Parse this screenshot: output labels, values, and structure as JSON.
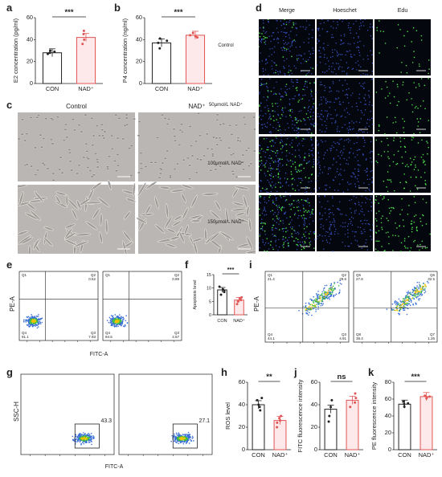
{
  "panel_letters": {
    "a": "a",
    "b": "b",
    "c": "c",
    "d": "d",
    "e": "e",
    "f": "f",
    "g": "g",
    "h": "h",
    "i": "i",
    "j": "j",
    "k": "k"
  },
  "chart_data": [
    {
      "id": "a",
      "type": "bar",
      "categories": [
        "CON",
        "NAD⁺"
      ],
      "values": [
        28,
        42
      ],
      "ylabel": "E2 concentration (pg/ml)",
      "ylim": [
        0,
        60
      ],
      "yticks": [
        0,
        20,
        40,
        60
      ],
      "significance": "***",
      "colors": [
        "#222222",
        "#e05555"
      ],
      "points": [
        [
          27,
          28,
          29,
          30
        ],
        [
          36,
          40,
          45,
          48
        ]
      ]
    },
    {
      "id": "b",
      "type": "bar",
      "categories": [
        "CON",
        "NAD⁺"
      ],
      "values": [
        37,
        44
      ],
      "ylabel": "P4 concentration (ng/ml)",
      "ylim": [
        0,
        60
      ],
      "yticks": [
        0,
        20,
        40,
        60
      ],
      "significance": "***",
      "colors": [
        "#222222",
        "#e05555"
      ],
      "points": [
        [
          32,
          37,
          41,
          39
        ],
        [
          43,
          46,
          42,
          44
        ]
      ]
    },
    {
      "id": "f",
      "type": "bar",
      "categories": [
        "CON",
        "NAD⁺"
      ],
      "values": [
        9.3,
        5.5
      ],
      "ylabel": "Apoptosis level",
      "ylim": [
        0,
        15
      ],
      "yticks": [
        0,
        5,
        10,
        15
      ],
      "significance": "***",
      "colors": [
        "#222222",
        "#e05555"
      ],
      "points": [
        [
          7.5,
          9,
          10.5,
          9.5,
          8.5
        ],
        [
          4,
          5,
          6.5,
          5.5,
          6.2
        ]
      ]
    },
    {
      "id": "h",
      "type": "bar",
      "categories": [
        "CON",
        "NAD⁺"
      ],
      "values": [
        40,
        26
      ],
      "ylabel": "ROS level",
      "ylim": [
        0,
        60
      ],
      "yticks": [
        0,
        20,
        40,
        60
      ],
      "significance": "**",
      "colors": [
        "#222222",
        "#e05555"
      ],
      "points": [
        [
          35,
          38,
          44,
          46,
          40
        ],
        [
          20,
          24,
          28,
          30,
          26
        ]
      ]
    },
    {
      "id": "j",
      "type": "bar",
      "categories": [
        "CON",
        "NAD⁺"
      ],
      "values": [
        36,
        44
      ],
      "ylabel": "FITC fluorescence intensity",
      "ylim": [
        0,
        60
      ],
      "yticks": [
        0,
        20,
        40,
        60
      ],
      "significance": "ns",
      "colors": [
        "#222222",
        "#e05555"
      ],
      "points": [
        [
          25,
          38,
          44,
          30
        ],
        [
          38,
          46,
          50,
          42
        ]
      ]
    },
    {
      "id": "k",
      "type": "bar",
      "categories": [
        "CON",
        "NAD⁺"
      ],
      "values": [
        54,
        63
      ],
      "ylabel": "PE fluorescence intensity",
      "ylim": [
        0,
        80
      ],
      "yticks": [
        0,
        20,
        40,
        60,
        80
      ],
      "significance": "***",
      "colors": [
        "#222222",
        "#e05555"
      ],
      "points": [
        [
          51,
          54,
          57,
          55
        ],
        [
          61,
          63,
          64,
          62
        ]
      ]
    }
  ],
  "panel_c": {
    "col_labels": [
      "Control",
      "NAD⁺"
    ]
  },
  "panel_d": {
    "col_labels": [
      "Merge",
      "Hoeschet",
      "Edu"
    ],
    "row_labels": [
      "Control",
      "50μmol/L NAD⁺",
      "100μmol/L NAD⁺",
      "150μmol/L NAD⁺"
    ],
    "edu_density": [
      0.25,
      0.45,
      0.7,
      0.85
    ]
  },
  "panel_e": {
    "xlabel": "FITC-A",
    "ylabel": "PE-A",
    "plots": [
      {
        "q1": "Q1",
        "q2": "Q2",
        "q3": "Q3",
        "q4": "Q4",
        "v1": "",
        "v2": "0.52",
        "v3": "7.93",
        "v4": "91.1"
      },
      {
        "q1": "Q1",
        "q2": "Q2",
        "q3": "Q3",
        "q4": "Q4",
        "v1": "",
        "v2": "0.89",
        "v3": "4.57",
        "v4": "94.5"
      }
    ]
  },
  "panel_i": {
    "ylabel": "PE-A",
    "plots": [
      {
        "q1": "Q1",
        "q2": "Q2",
        "q3": "Q3",
        "q4": "Q4",
        "v1": "21.4",
        "v2": "29.6",
        "v3": "4.91",
        "v4": "44.1"
      },
      {
        "q1": "Q5",
        "q2": "Q6",
        "q3": "Q7",
        "q4": "Q8",
        "v1": "27.8",
        "v2": "32.5",
        "v3": "1.26",
        "v4": "38.4"
      }
    ]
  },
  "panel_g": {
    "xlabel": "FITC-A",
    "ylabel": "SSC-H",
    "gate_values": [
      "43.3",
      "27.1"
    ]
  }
}
